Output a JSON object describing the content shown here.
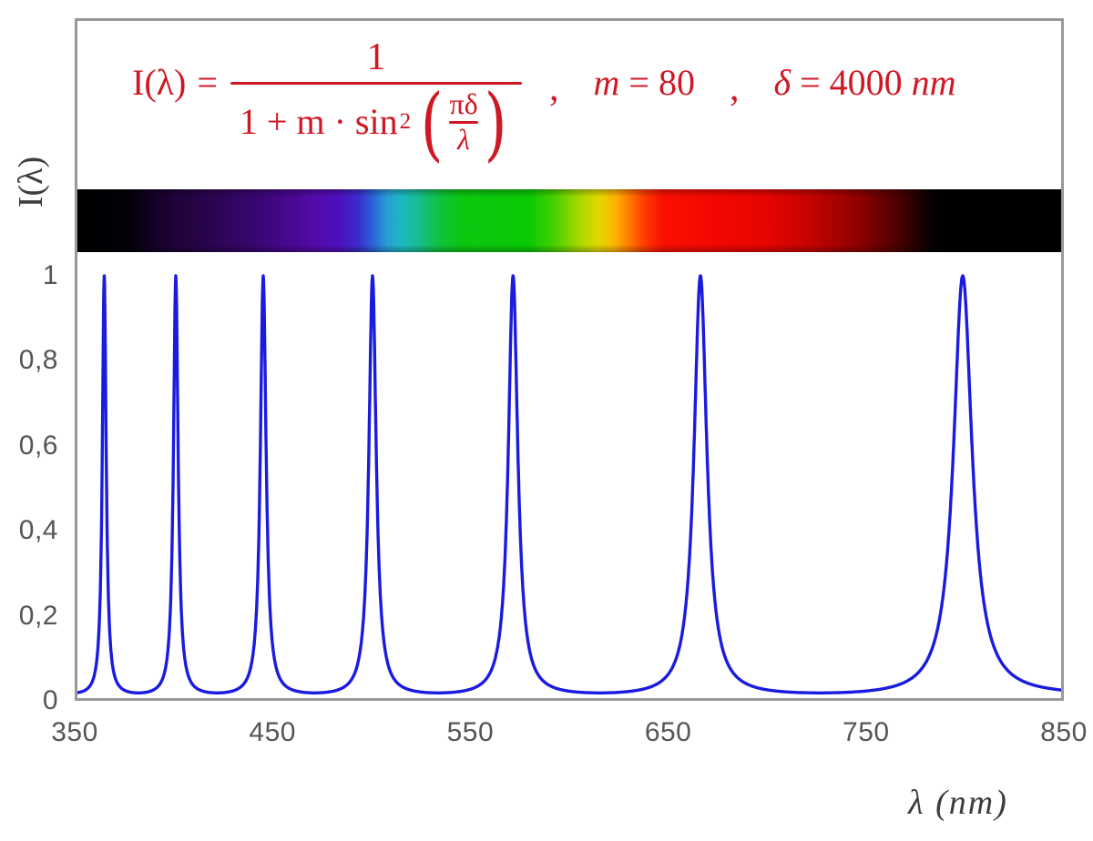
{
  "figure": {
    "y_axis_title": "I(λ)",
    "x_axis_title": "λ  (nm)"
  },
  "formula": {
    "color": "#d01825",
    "lhs": "I(λ)",
    "eq": "=",
    "numerator": "1",
    "den_text": "1 + m · sin",
    "den_sup": "2",
    "open_paren": "(",
    "close_paren": ")",
    "inner_num": "πδ",
    "inner_den": "λ",
    "comma1": ",",
    "comma2": ",",
    "m_symbol": "m",
    "m_eq": "=",
    "m_value": "80",
    "d_symbol": "δ",
    "d_eq": "=",
    "d_value": "4000",
    "d_unit": "nm"
  },
  "chart_data": {
    "type": "line",
    "title": "I(λ) = 1 / (1 + m·sin²(πδ/λ)) ,  m = 80 ,  δ = 4000 nm",
    "function": {
      "form": "I(lambda) = 1 / (1 + m * sin^2(pi*delta/lambda))",
      "m": 80,
      "delta_nm": 4000
    },
    "x": {
      "label": "λ (nm)",
      "min": 350,
      "max": 850,
      "ticks": [
        {
          "value": 350,
          "label": "350"
        },
        {
          "value": 450,
          "label": "450"
        },
        {
          "value": 550,
          "label": "550"
        },
        {
          "value": 650,
          "label": "650"
        },
        {
          "value": 750,
          "label": "750"
        },
        {
          "value": 850,
          "label": "850"
        }
      ]
    },
    "y": {
      "label": "I(λ)",
      "min": 0,
      "max": 1,
      "ticks": [
        {
          "value": 0,
          "label": "0"
        },
        {
          "value": 0.2,
          "label": "0,2"
        },
        {
          "value": 0.4,
          "label": "0,4"
        },
        {
          "value": 0.6,
          "label": "0,6"
        },
        {
          "value": 0.8,
          "label": "0,8"
        },
        {
          "value": 1,
          "label": "1"
        }
      ]
    },
    "peaks_nm": [
      363.64,
      400,
      444.44,
      500,
      571.43,
      666.67,
      800
    ],
    "peak_value": 1,
    "min_value": 0.0123,
    "series": [
      {
        "name": "I(λ)",
        "color": "#1b1be0",
        "stroke_width": 3.4
      }
    ],
    "grid": false,
    "legend": false
  },
  "spectrum_bar": {
    "wavelength_min_nm": 350,
    "wavelength_max_nm": 850,
    "stops": [
      [
        0,
        "#000000"
      ],
      [
        5.5,
        "#040009"
      ],
      [
        7.5,
        "#130124"
      ],
      [
        10,
        "#1e0338"
      ],
      [
        14,
        "#2c0553"
      ],
      [
        18,
        "#380670"
      ],
      [
        22,
        "#4a0894"
      ],
      [
        24,
        "#540aa6"
      ],
      [
        26.5,
        "#4c10bc"
      ],
      [
        28.5,
        "#3b2acc"
      ],
      [
        30,
        "#2c62d8"
      ],
      [
        31.5,
        "#25a0d4"
      ],
      [
        33,
        "#1eb8c0"
      ],
      [
        35,
        "#16bd86"
      ],
      [
        36.8,
        "#10c23c"
      ],
      [
        39,
        "#0cc711"
      ],
      [
        46,
        "#0aca04"
      ],
      [
        48.5,
        "#48d100"
      ],
      [
        51,
        "#a8d800"
      ],
      [
        53,
        "#e2d800"
      ],
      [
        54.6,
        "#ffb400"
      ],
      [
        56,
        "#ff7e00"
      ],
      [
        57.6,
        "#ff3c00"
      ],
      [
        59.5,
        "#fa1000"
      ],
      [
        64,
        "#f40800"
      ],
      [
        70,
        "#e60500"
      ],
      [
        74.5,
        "#c40300"
      ],
      [
        79.5,
        "#8c0100"
      ],
      [
        83.5,
        "#4a0000"
      ],
      [
        86,
        "#150000"
      ],
      [
        87.5,
        "#000000"
      ],
      [
        100,
        "#000000"
      ]
    ]
  },
  "colors": {
    "frame": "#97989a",
    "axis_text": "#555555",
    "axis_title": "#3d3d3d"
  }
}
